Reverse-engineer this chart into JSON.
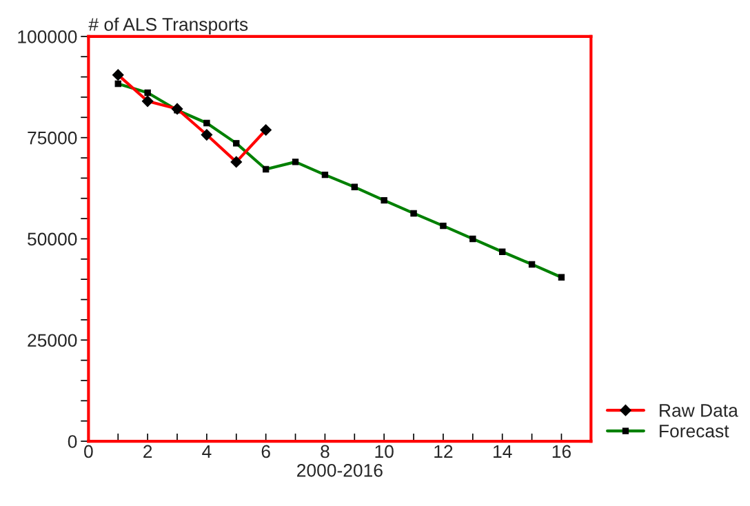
{
  "chart_data": {
    "type": "line",
    "xlabel": "2000-2016",
    "ylabel": "# of ALS Transports",
    "xlim": [
      0,
      17
    ],
    "ylim": [
      0,
      100000
    ],
    "xticks": [
      0,
      {
        "value": 1,
        "label": null
      },
      2,
      {
        "value": 3,
        "label": null
      },
      4,
      {
        "value": 5,
        "label": null
      },
      6,
      {
        "value": 7,
        "label": null
      },
      8,
      {
        "value": 9,
        "label": null
      },
      10,
      {
        "value": 11,
        "label": null
      },
      12,
      {
        "value": 13,
        "label": null
      },
      14,
      {
        "value": 15,
        "label": null
      },
      16,
      {
        "value": 17,
        "label": null
      }
    ],
    "yticks": [
      0,
      {
        "value": 5000,
        "label": null
      },
      {
        "value": 10000,
        "label": null
      },
      {
        "value": 15000,
        "label": null
      },
      {
        "value": 20000,
        "label": null
      },
      25000,
      {
        "value": 30000,
        "label": null
      },
      {
        "value": 35000,
        "label": null
      },
      {
        "value": 40000,
        "label": null
      },
      {
        "value": 45000,
        "label": null
      },
      50000,
      {
        "value": 55000,
        "label": null
      },
      {
        "value": 60000,
        "label": null
      },
      {
        "value": 65000,
        "label": null
      },
      {
        "value": 70000,
        "label": null
      },
      75000,
      {
        "value": 80000,
        "label": null
      },
      {
        "value": 85000,
        "label": null
      },
      {
        "value": 90000,
        "label": null
      },
      {
        "value": 95000,
        "label": null
      },
      100000
    ],
    "grid": false,
    "legend": "bottom right",
    "line_style": "solid",
    "series": [
      {
        "name": "Raw Data",
        "color": "#ff0000",
        "marker": "diamond",
        "x": [
          1,
          2,
          3,
          4,
          5,
          6
        ],
        "values": [
          90500,
          84000,
          82100,
          75700,
          69000,
          76900
        ]
      },
      {
        "name": "Forecast",
        "color": "#008000",
        "marker": "square",
        "x": [
          1,
          2,
          3,
          4,
          5,
          6,
          7,
          8,
          9,
          10,
          11,
          12,
          13,
          14,
          15,
          16
        ],
        "values": [
          88300,
          86100,
          81800,
          78600,
          73600,
          67200,
          69000,
          65800,
          62800,
          59500,
          56300,
          53200,
          50000,
          46800,
          43700,
          40500
        ]
      }
    ]
  }
}
